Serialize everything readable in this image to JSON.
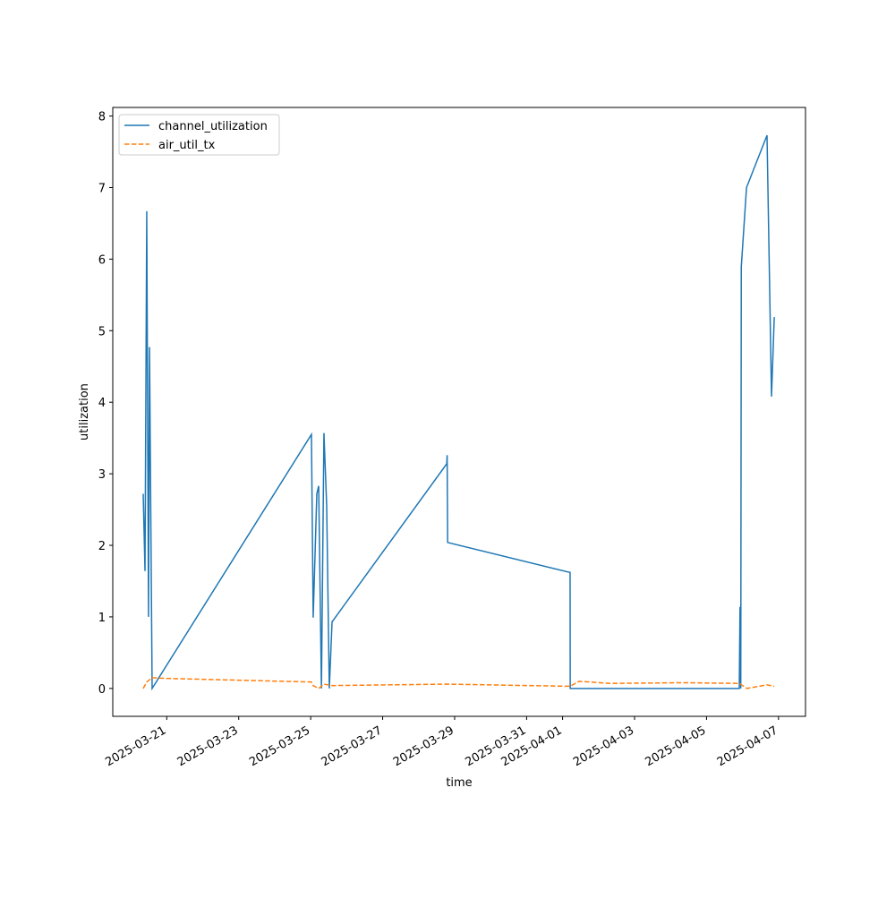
{
  "chart_data": {
    "type": "line",
    "xlabel": "time",
    "ylabel": "utilization",
    "xlim": [
      "2025-03-19T12:00",
      "2025-04-07T18:00"
    ],
    "xticks": [
      "2025-03-21",
      "2025-03-23",
      "2025-03-25",
      "2025-03-27",
      "2025-03-29",
      "2025-03-31",
      "2025-04-01",
      "2025-04-03",
      "2025-04-05",
      "2025-04-07"
    ],
    "ylim": [
      -0.39,
      8.12
    ],
    "yticks": [
      0,
      1,
      2,
      3,
      4,
      5,
      6,
      7,
      8
    ],
    "legend": "upper left",
    "series": [
      {
        "name": "channel_utilization",
        "color": "#1f77b4",
        "dash": "solid",
        "x": [
          "2025-03-20T08:18",
          "2025-03-20T09:30",
          "2025-03-20T10:40",
          "2025-03-20T11:50",
          "2025-03-20T12:30",
          "2025-03-20T14:15",
          "2025-03-25T00:30",
          "2025-03-25T01:40",
          "2025-03-25T04:05",
          "2025-03-25T05:20",
          "2025-03-25T07:10",
          "2025-03-25T08:50",
          "2025-03-25T10:40",
          "2025-03-25T12:25",
          "2025-03-25T14:15",
          "2025-03-28T18:45",
          "2025-03-28T19:00",
          "2025-03-28T19:20",
          "2025-04-01T05:00",
          "2025-04-01T05:05",
          "2025-04-05T21:50",
          "2025-04-05T22:20",
          "2025-04-05T22:50",
          "2025-04-05T23:10",
          "2025-04-06T02:40",
          "2025-04-06T16:20",
          "2025-04-06T19:20",
          "2025-04-06T21:10"
        ],
        "values": [
          2.72,
          1.64,
          6.67,
          1.0,
          4.77,
          0,
          3.55,
          0.99,
          2.72,
          2.83,
          0,
          3.57,
          2.55,
          0,
          0.93,
          3.14,
          3.26,
          2.04,
          1.62,
          0,
          0,
          1.14,
          0,
          5.89,
          7.0,
          7.73,
          4.08,
          5.19
        ]
      },
      {
        "name": "air_util_tx",
        "color": "#ff7f0e",
        "dash": "dashed",
        "x": [
          "2025-03-20T08:18",
          "2025-03-20T10:40",
          "2025-03-20T14:15",
          "2025-03-21T00:00",
          "2025-03-25T00:30",
          "2025-03-25T01:40",
          "2025-03-25T05:20",
          "2025-03-25T08:50",
          "2025-03-25T14:15",
          "2025-03-28T18:45",
          "2025-04-01T05:00",
          "2025-04-01T11:00",
          "2025-04-02T08:00",
          "2025-04-04T08:00",
          "2025-04-05T21:50",
          "2025-04-06T03:00",
          "2025-04-06T16:20",
          "2025-04-06T21:10"
        ],
        "values": [
          0.0,
          0.09,
          0.15,
          0.14,
          0.09,
          0.04,
          0.0,
          0.06,
          0.04,
          0.06,
          0.03,
          0.1,
          0.07,
          0.08,
          0.07,
          0.0,
          0.05,
          0.03
        ]
      }
    ]
  }
}
